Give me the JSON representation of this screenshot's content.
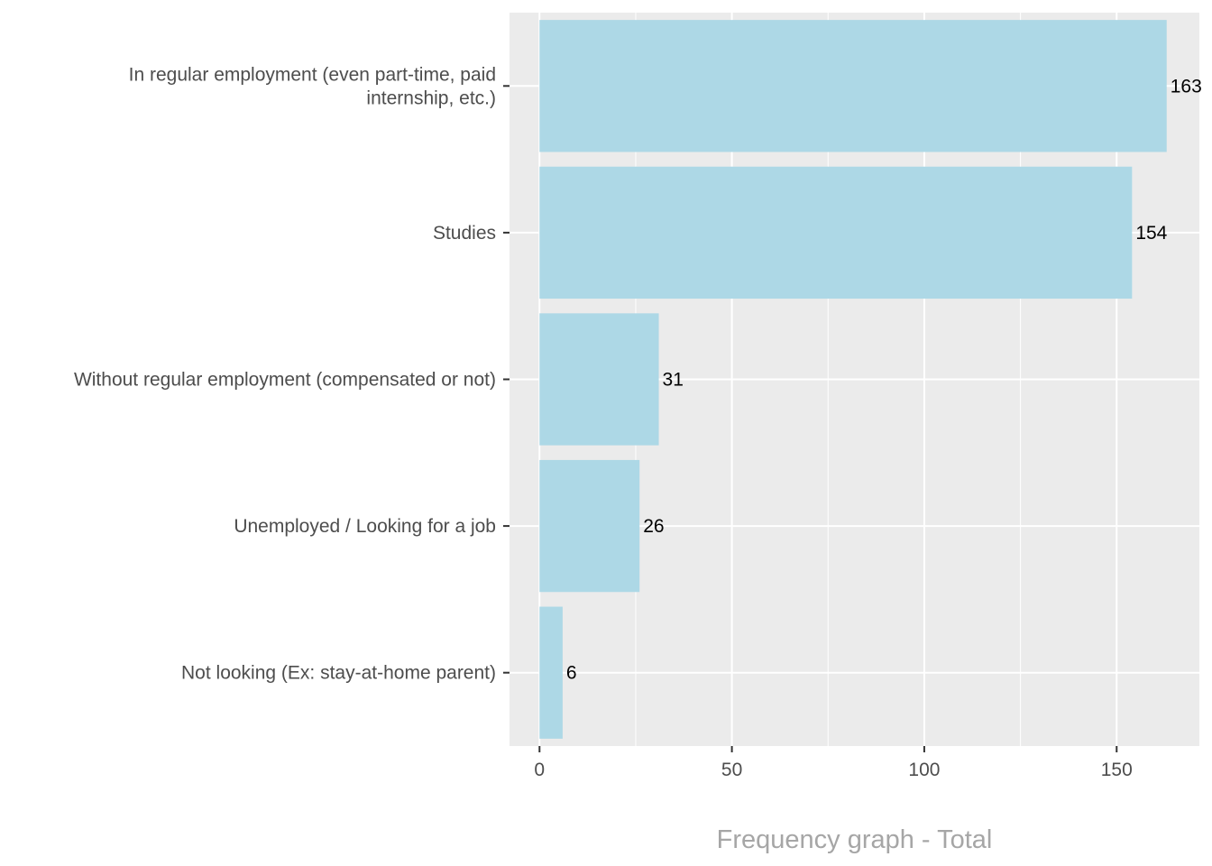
{
  "chart_data": {
    "type": "bar",
    "orientation": "horizontal",
    "categories": [
      "In regular employment (even part-time, paid internship, etc.)",
      "Studies",
      "Without regular employment (compensated or not)",
      "Unemployed / Looking for a job",
      "Not looking (Ex: stay-at-home parent)"
    ],
    "category_lines": [
      [
        "In regular employment (even part-time, paid",
        "internship, etc.)"
      ],
      [
        "Studies"
      ],
      [
        "Without regular employment (compensated or not)"
      ],
      [
        "Unemployed / Looking for a job"
      ],
      [
        "Not looking (Ex: stay-at-home parent)"
      ]
    ],
    "values": [
      163,
      154,
      31,
      26,
      6
    ],
    "data_labels": [
      "163",
      "154",
      "31",
      "26",
      "6"
    ],
    "xlabel": "Frequency graph - Total",
    "ylabel": "",
    "xlim": [
      -7.8,
      171.5
    ],
    "x_ticks": [
      0,
      50,
      100,
      150
    ],
    "x_minor_ticks": [
      25,
      75,
      125,
      175
    ],
    "grid": true,
    "legend": "none"
  },
  "colors": {
    "bar": "#add8e6",
    "panel": "#ebebeb",
    "grid": "#ffffff",
    "axis_text": "#4d4d4d",
    "axis_title": "#a6a6a6",
    "data_label": "#000000"
  }
}
